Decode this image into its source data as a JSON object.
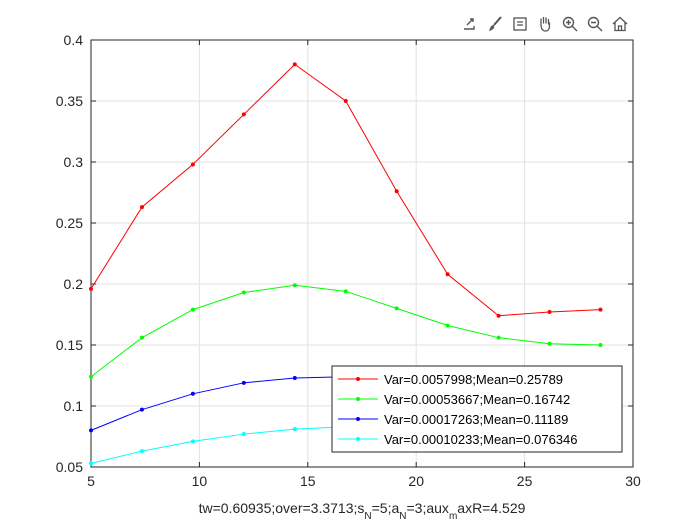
{
  "toolbar": {
    "icons": [
      "export-icon",
      "brush-icon",
      "data-tip-icon",
      "pan-icon",
      "zoom-in-icon",
      "zoom-out-icon",
      "home-icon"
    ]
  },
  "chart_data": {
    "type": "line",
    "title": "",
    "xlabel": "tw=0.60935;over=3.3713;s_N=5;a_N=3;aux_maxR=4.529",
    "xlabel_parts": [
      {
        "t": "tw=0.60935;over=3.3713;s",
        "sub": false
      },
      {
        "t": "N",
        "sub": true
      },
      {
        "t": "=5;a",
        "sub": false
      },
      {
        "t": "N",
        "sub": true
      },
      {
        "t": "=3;aux",
        "sub": false
      },
      {
        "t": "m",
        "sub": true
      },
      {
        "t": "axR=4.529",
        "sub": false
      }
    ],
    "ylabel": "",
    "xlim": [
      5,
      30
    ],
    "ylim": [
      0.05,
      0.4
    ],
    "xticks": [
      "5",
      "10",
      "15",
      "20",
      "25",
      "30"
    ],
    "yticks": [
      "0.05",
      "0.1",
      "0.15",
      "0.2",
      "0.25",
      "0.3",
      "0.35",
      "0.4"
    ],
    "grid": true,
    "legend_position": "bottom-right",
    "x": [
      5.0,
      7.35,
      9.7,
      12.05,
      14.4,
      16.75,
      19.1,
      21.45,
      23.8,
      26.15,
      28.5
    ],
    "series": [
      {
        "name": "Var=0.0057998;Mean=0.25789",
        "color": "#ff0000",
        "values": [
          0.196,
          0.263,
          0.298,
          0.339,
          0.38,
          0.35,
          0.276,
          0.208,
          0.174,
          0.177,
          0.179
        ]
      },
      {
        "name": "Var=0.00053667;Mean=0.16742",
        "color": "#00ff00",
        "values": [
          0.124,
          0.156,
          0.179,
          0.193,
          0.199,
          0.194,
          0.18,
          0.166,
          0.156,
          0.151,
          0.15
        ]
      },
      {
        "name": "Var=0.00017263;Mean=0.11189",
        "color": "#0000ff",
        "values": [
          0.08,
          0.097,
          0.11,
          0.119,
          0.123,
          0.124,
          0.123,
          0.121,
          0.118,
          0.116,
          0.115
        ]
      },
      {
        "name": "Var=0.00010233;Mean=0.076346",
        "color": "#00ffff",
        "values": [
          0.053,
          0.063,
          0.071,
          0.077,
          0.081,
          0.083,
          0.084,
          0.085,
          0.085,
          0.085,
          0.085
        ]
      }
    ]
  }
}
